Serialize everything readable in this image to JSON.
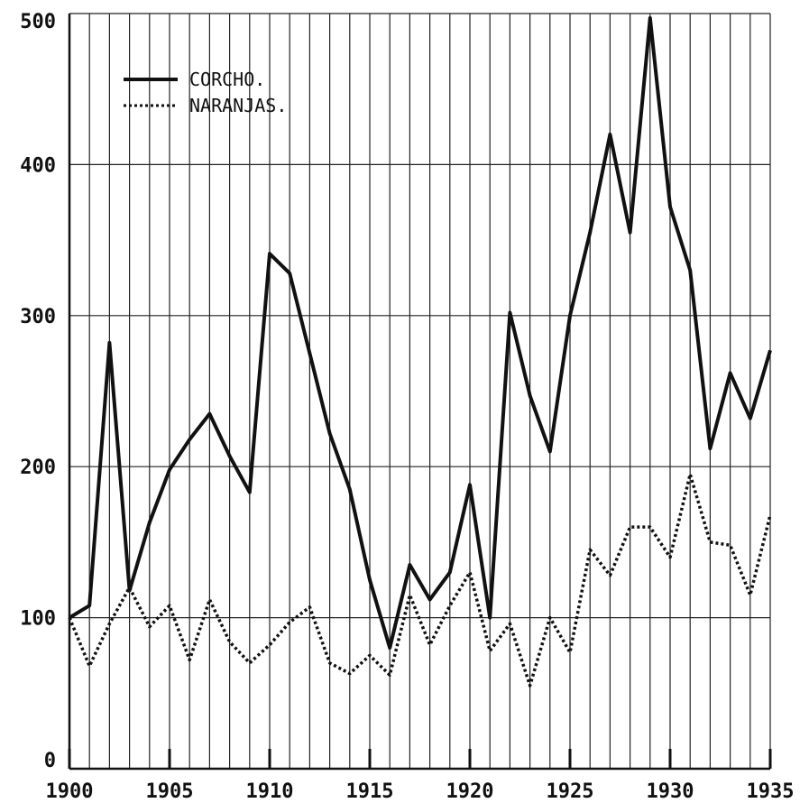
{
  "chart_data": {
    "type": "line",
    "title": "",
    "xlabel": "",
    "ylabel": "",
    "xlim": [
      1900,
      1935
    ],
    "ylim": [
      0,
      500
    ],
    "x_ticks": [
      1900,
      1905,
      1910,
      1915,
      1920,
      1925,
      1930,
      1935
    ],
    "y_ticks": [
      0,
      100,
      200,
      300,
      400,
      500
    ],
    "grid": true,
    "legend": {
      "position": "top-left"
    },
    "x": [
      1900,
      1901,
      1902,
      1903,
      1904,
      1905,
      1906,
      1907,
      1908,
      1909,
      1910,
      1911,
      1912,
      1913,
      1914,
      1915,
      1916,
      1917,
      1918,
      1919,
      1920,
      1921,
      1922,
      1923,
      1924,
      1925,
      1926,
      1927,
      1928,
      1929,
      1930,
      1931,
      1932,
      1933,
      1934,
      1935
    ],
    "series": [
      {
        "name": "CORCHO.",
        "style": "solid",
        "values": [
          100,
          108,
          282,
          118,
          163,
          198,
          218,
          235,
          207,
          183,
          341,
          328,
          275,
          222,
          185,
          125,
          80,
          135,
          112,
          130,
          188,
          100,
          302,
          247,
          210,
          300,
          355,
          420,
          355,
          497,
          372,
          330,
          212,
          262,
          232,
          277
        ]
      },
      {
        "name": "NARANJAS.",
        "style": "dotted",
        "values": [
          100,
          68,
          96,
          120,
          94,
          108,
          72,
          112,
          84,
          70,
          82,
          97,
          107,
          70,
          63,
          75,
          62,
          115,
          82,
          108,
          130,
          78,
          96,
          55,
          100,
          77,
          145,
          128,
          160,
          160,
          140,
          195,
          150,
          148,
          115,
          168
        ]
      }
    ]
  }
}
